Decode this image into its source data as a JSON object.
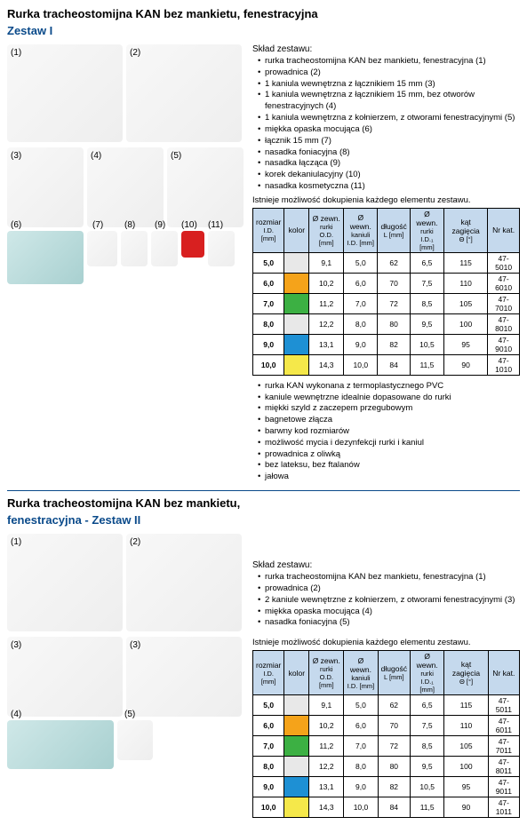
{
  "title1": "Rurka tracheostomijna KAN bez mankietu, fenestracyjna",
  "subtitle1": "Zestaw I",
  "sklad_h": "Skład zestawu:",
  "set1_items": [
    "rurka tracheostomijna KAN bez mankietu, fenestracyjna (1)",
    "prowadnica (2)",
    "1 kaniula wewnętrzna z łącznikiem 15 mm (3)",
    "1 kaniula wewnętrzna z łącznikiem 15 mm, bez otworów fenestracyjnych (4)",
    "1 kaniula wewnętrzna z kołnierzem, z otworami fenestracyjnymi (5)",
    "miękka opaska mocująca (6)",
    "łącznik 15 mm (7)",
    "nasadka foniacyjna (8)",
    "nasadka łącząca (9)",
    "korek dekaniulacyjny (10)",
    "nasadka kosmetyczna (11)"
  ],
  "note": "Istnieje możliwość dokupienia każdego elementu zestawu.",
  "table_headers": {
    "h1a": "rozmiar",
    "h1b": "I.D.",
    "h1c": "[mm]",
    "h2": "kolor",
    "h3a": "Ø zewn.",
    "h3b": "rurki",
    "h3c": "O.D. [mm]",
    "h4a": "Ø wewn.",
    "h4b": "kaniuli",
    "h4c": "I.D. [mm]",
    "h5a": "długość",
    "h5b": "L [mm]",
    "h6a": "Ø wewn.",
    "h6b": "rurki",
    "h6c": "I.D.₁ [mm]",
    "h7a": "kąt zagięcia",
    "h7b": "Θ [°]",
    "h8": "Nr kat."
  },
  "table1_rows": [
    {
      "size": "5,0",
      "color": "#e8e8e8",
      "od": "9,1",
      "id": "5,0",
      "l": "62",
      "id1": "6,5",
      "ang": "115",
      "kat": "47-5010"
    },
    {
      "size": "6,0",
      "color": "#f5a31a",
      "od": "10,2",
      "id": "6,0",
      "l": "70",
      "id1": "7,5",
      "ang": "110",
      "kat": "47-6010"
    },
    {
      "size": "7,0",
      "color": "#3cb043",
      "od": "11,2",
      "id": "7,0",
      "l": "72",
      "id1": "8,5",
      "ang": "105",
      "kat": "47-7010"
    },
    {
      "size": "8,0",
      "color": "#e8e8e8",
      "od": "12,2",
      "id": "8,0",
      "l": "80",
      "id1": "9,5",
      "ang": "100",
      "kat": "47-8010"
    },
    {
      "size": "9,0",
      "color": "#1e90d4",
      "od": "13,1",
      "id": "9,0",
      "l": "82",
      "id1": "10,5",
      "ang": "95",
      "kat": "47-9010"
    },
    {
      "size": "10,0",
      "color": "#f5e84a",
      "od": "14,3",
      "id": "10,0",
      "l": "84",
      "id1": "11,5",
      "ang": "90",
      "kat": "47-1010"
    }
  ],
  "features": [
    "rurka KAN wykonana z termoplastycznego PVC",
    "kaniule wewnętrzne idealnie dopasowane do rurki",
    "miękki szyld z zaczepem przegubowym",
    "bagnetowe złącza",
    "barwny kod rozmiarów",
    "możliwość mycia i dezynfekcji rurki i kaniul",
    "prowadnica z oliwką",
    "bez lateksu, bez ftalanów",
    "jałowa"
  ],
  "title2": "Rurka tracheostomijna KAN bez mankietu,",
  "subtitle2": "fenestracyjna - Zestaw II",
  "set2_items": [
    "rurka tracheostomijna KAN bez mankietu, fenestracyjna (1)",
    "prowadnica (2)",
    "2 kaniule wewnętrzne z kołnierzem, z otworami fenestracyjnymi (3)",
    "miękka opaska mocująca (4)",
    "nasadka foniacyjna (5)"
  ],
  "table2_rows": [
    {
      "size": "5,0",
      "color": "#e8e8e8",
      "od": "9,1",
      "id": "5,0",
      "l": "62",
      "id1": "6,5",
      "ang": "115",
      "kat": "47-5011"
    },
    {
      "size": "6,0",
      "color": "#f5a31a",
      "od": "10,2",
      "id": "6,0",
      "l": "70",
      "id1": "7,5",
      "ang": "110",
      "kat": "47-6011"
    },
    {
      "size": "7,0",
      "color": "#3cb043",
      "od": "11,2",
      "id": "7,0",
      "l": "72",
      "id1": "8,5",
      "ang": "105",
      "kat": "47-7011"
    },
    {
      "size": "8,0",
      "color": "#e8e8e8",
      "od": "12,2",
      "id": "8,0",
      "l": "80",
      "id1": "9,5",
      "ang": "100",
      "kat": "47-8011"
    },
    {
      "size": "9,0",
      "color": "#1e90d4",
      "od": "13,1",
      "id": "9,0",
      "l": "82",
      "id1": "10,5",
      "ang": "95",
      "kat": "47-9011"
    },
    {
      "size": "10,0",
      "color": "#f5e84a",
      "od": "14,3",
      "id": "10,0",
      "l": "84",
      "id1": "11,5",
      "ang": "90",
      "kat": "47-1011"
    }
  ],
  "labels": {
    "l1": "(1)",
    "l2": "(2)",
    "l3": "(3)",
    "l4": "(4)",
    "l5": "(5)",
    "l6": "(6)",
    "l7": "(7)",
    "l8": "(8)",
    "l9": "(9)",
    "l10": "(10)",
    "l11": "(11)"
  }
}
